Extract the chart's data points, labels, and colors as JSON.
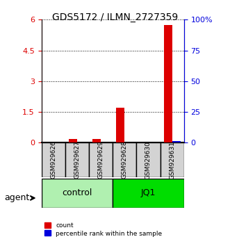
{
  "title": "GDS5172 / ILMN_2727359",
  "samples": [
    "GSM929626",
    "GSM929627",
    "GSM929629",
    "GSM929628",
    "GSM929630",
    "GSM929631"
  ],
  "count_values": [
    0.0,
    0.18,
    0.18,
    1.7,
    0.0,
    5.75
  ],
  "percentile_values": [
    0.0,
    0.12,
    0.12,
    0.12,
    0.0,
    1.35
  ],
  "groups": [
    {
      "label": "control",
      "indices": [
        0,
        1,
        2
      ],
      "color": "#b0f0b0"
    },
    {
      "label": "JQ1",
      "indices": [
        3,
        4,
        5
      ],
      "color": "#00dd00"
    }
  ],
  "ylim_left": [
    0,
    6
  ],
  "ylim_right": [
    0,
    100
  ],
  "yticks_left": [
    0,
    1.5,
    3,
    4.5,
    6
  ],
  "yticks_right": [
    0,
    25,
    50,
    75,
    100
  ],
  "ytick_labels_left": [
    "0",
    "1.5",
    "3",
    "4.5",
    "6"
  ],
  "ytick_labels_right": [
    "0",
    "25",
    "50",
    "75",
    "100%"
  ],
  "bar_width": 0.35,
  "count_color": "#dd0000",
  "percentile_color": "#0000dd",
  "agent_label": "agent",
  "xlabel_color": "black",
  "left_axis_color": "#dd0000",
  "right_axis_color": "#0000dd",
  "grid_color": "black",
  "grid_style": "dotted"
}
